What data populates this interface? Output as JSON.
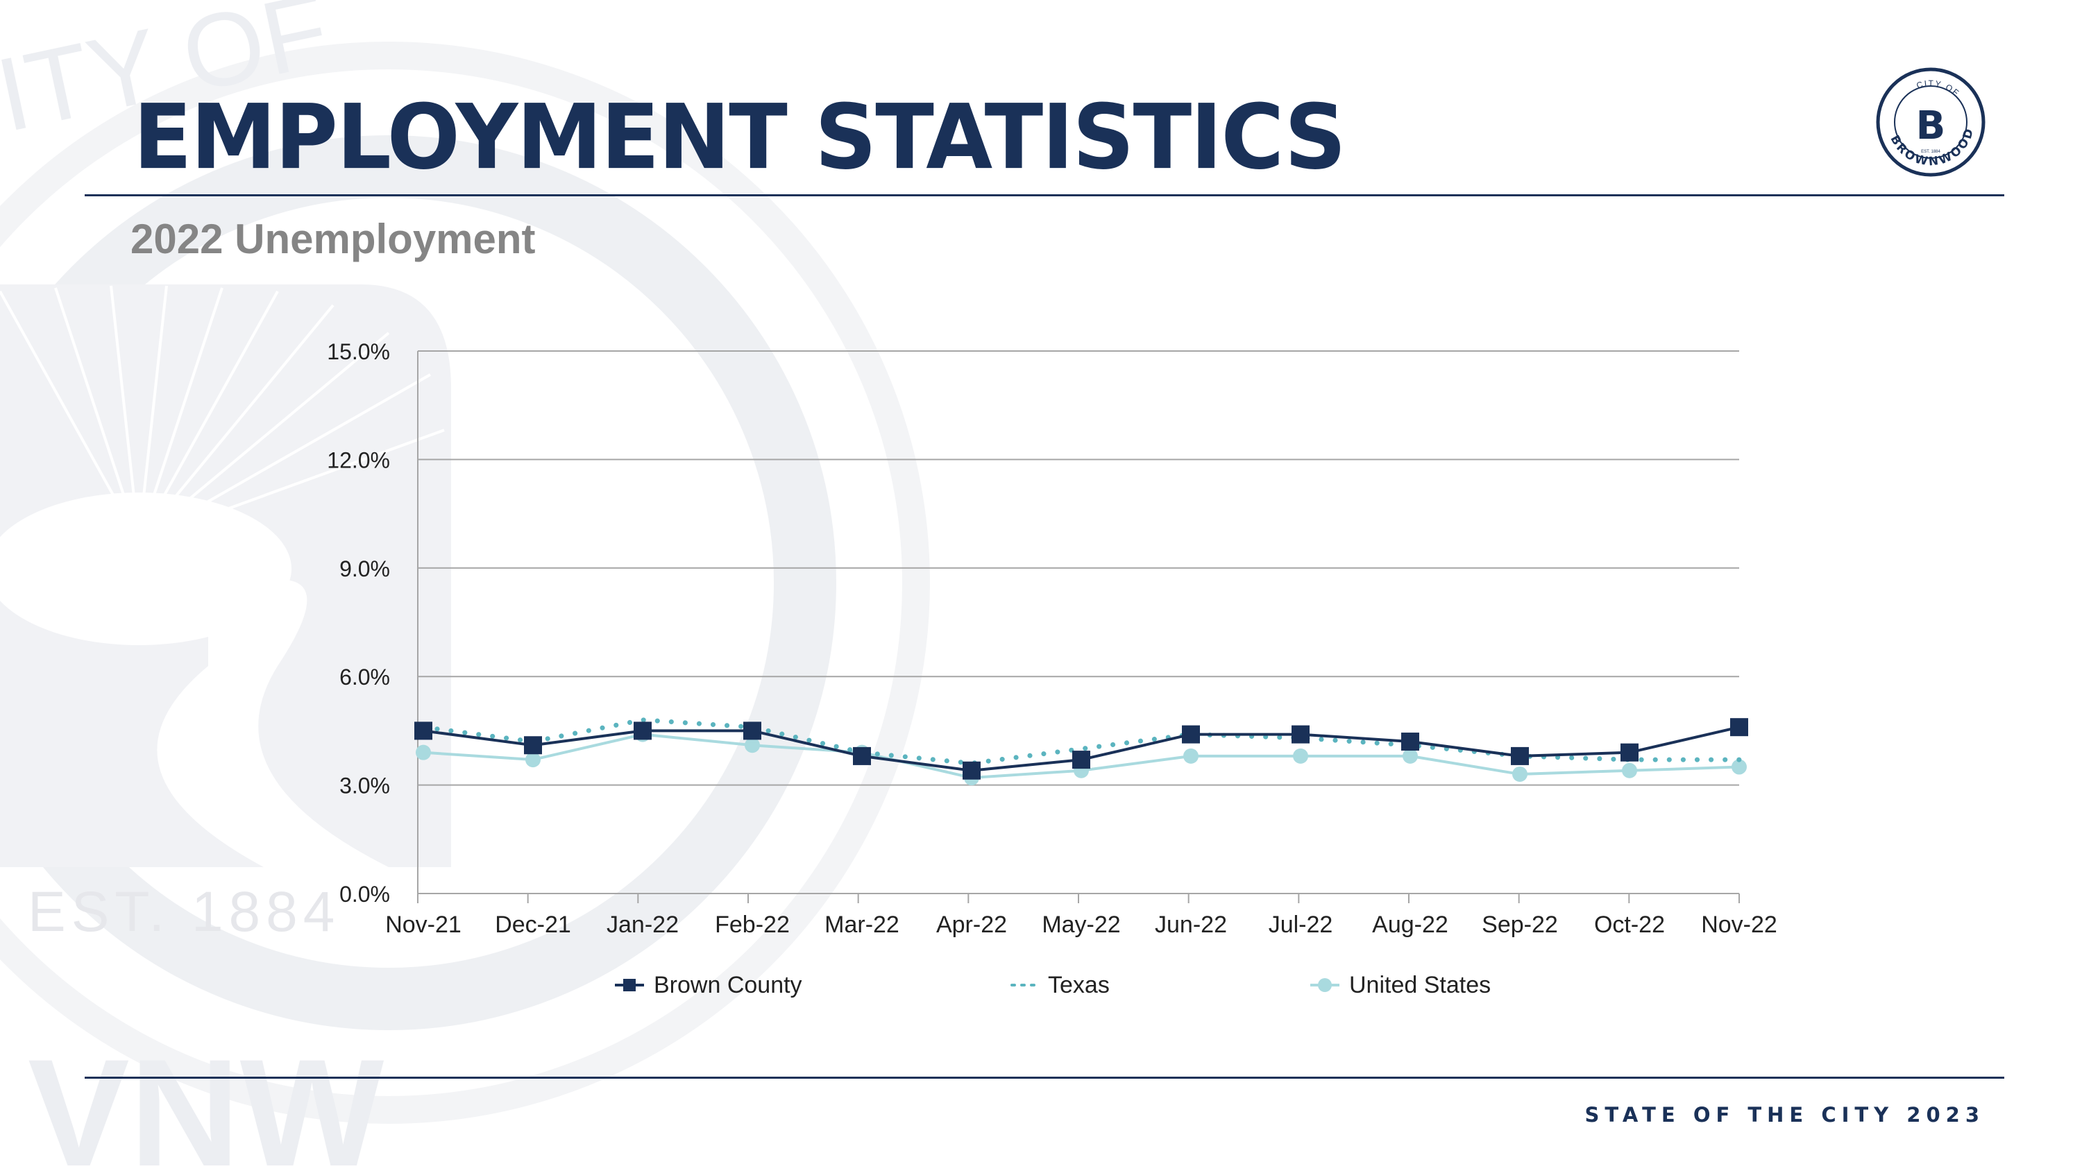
{
  "header": {
    "title": "EMPLOYMENT STATISTICS",
    "subtitle": "2022 Unemployment"
  },
  "seal": {
    "top_text": "CITY OF",
    "bottom_text": "BROWNWOOD",
    "est_text": "EST. 1884",
    "letter": "B"
  },
  "watermark": {
    "text": "EST. 1884"
  },
  "footer": {
    "text": "STATE OF THE CITY 2023"
  },
  "colors": {
    "navy": "#1a3158",
    "texas": "#5bb4bf",
    "us": "#a9dadf",
    "grid": "#a6a6a6"
  },
  "chart_data": {
    "type": "line",
    "title": "",
    "xlabel": "",
    "ylabel": "",
    "categories": [
      "Nov-21",
      "Dec-21",
      "Jan-22",
      "Feb-22",
      "Mar-22",
      "Apr-22",
      "May-22",
      "Jun-22",
      "Jul-22",
      "Aug-22",
      "Sep-22",
      "Oct-22",
      "Nov-22"
    ],
    "ylim": [
      0,
      15
    ],
    "yticks": [
      0,
      3,
      6,
      9,
      12,
      15
    ],
    "ytick_labels": [
      "0.0%",
      "3.0%",
      "6.0%",
      "9.0%",
      "12.0%",
      "15.0%"
    ],
    "grid": true,
    "legend_position": "bottom",
    "series": [
      {
        "name": "Brown County",
        "style": "solid",
        "marker": "square",
        "color": "#1a3158",
        "values": [
          4.5,
          4.1,
          4.5,
          4.5,
          3.8,
          3.4,
          3.7,
          4.4,
          4.4,
          4.2,
          3.8,
          3.9,
          4.6
        ]
      },
      {
        "name": "Texas",
        "style": "dotted",
        "marker": "none",
        "color": "#5bb4bf",
        "values": [
          4.6,
          4.2,
          4.8,
          4.6,
          3.9,
          3.6,
          4.0,
          4.4,
          4.3,
          4.1,
          3.8,
          3.7,
          3.7
        ]
      },
      {
        "name": "United States",
        "style": "solid",
        "marker": "circle",
        "color": "#a9dadf",
        "values": [
          3.9,
          3.7,
          4.4,
          4.1,
          3.9,
          3.2,
          3.4,
          3.8,
          3.8,
          3.8,
          3.3,
          3.4,
          3.5
        ]
      }
    ]
  }
}
